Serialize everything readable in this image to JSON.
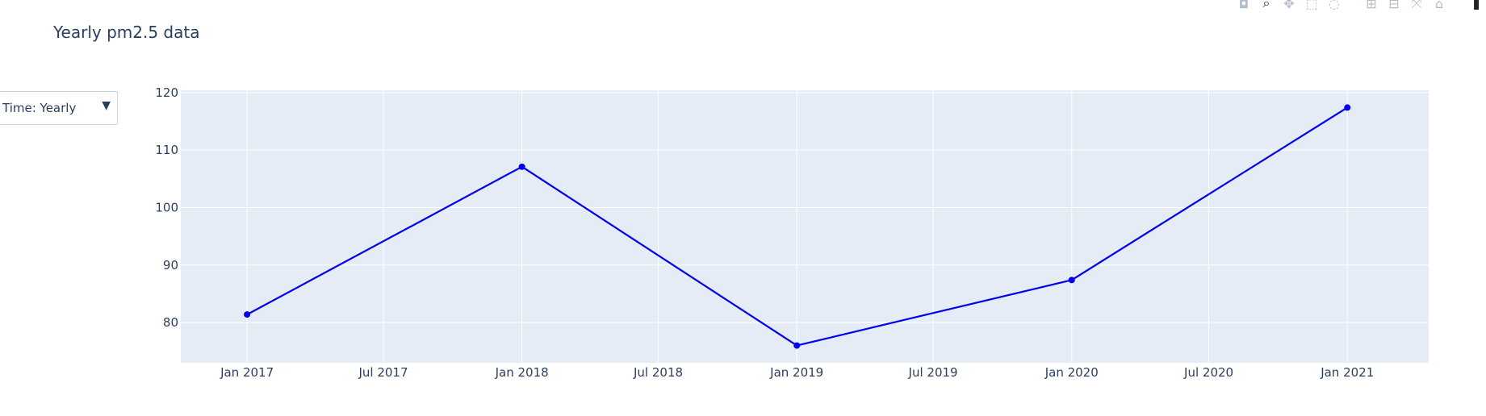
{
  "title": "Yearly pm2.5 data",
  "dropdown": {
    "label": "Time: Yearly",
    "arrow": "▼"
  },
  "modebar": [
    {
      "name": "camera-icon",
      "glyph": "◘"
    },
    {
      "name": "zoom-icon",
      "glyph": "⌕",
      "dark": true
    },
    {
      "name": "pan-icon",
      "glyph": "✥"
    },
    {
      "name": "box-select-icon",
      "glyph": "⬚"
    },
    {
      "name": "lasso-select-icon",
      "glyph": "◌"
    },
    {
      "name": "zoom-in-icon",
      "glyph": "⊞"
    },
    {
      "name": "zoom-out-icon",
      "glyph": "⊟"
    },
    {
      "name": "autoscale-icon",
      "glyph": "⤧"
    },
    {
      "name": "reset-axes-icon",
      "glyph": "⌂"
    },
    {
      "name": "plotly-logo-icon",
      "glyph": "▮",
      "dark": true
    }
  ],
  "chart_data": {
    "type": "line",
    "title": "Yearly pm2.5 data",
    "xlabel": "",
    "ylabel": "",
    "x": [
      "2017-01-01",
      "2018-01-01",
      "2019-01-01",
      "2020-01-01",
      "2021-01-01"
    ],
    "y": [
      81.4,
      107.1,
      76.0,
      87.4,
      117.4
    ],
    "xlim": [
      "2016-10-05",
      "2021-04-19"
    ],
    "ylim": [
      73.0,
      120.4
    ],
    "x_ticks": [
      "2017-01-01",
      "2017-07-01",
      "2018-01-01",
      "2018-07-01",
      "2019-01-01",
      "2019-07-01",
      "2020-01-01",
      "2020-07-01",
      "2021-01-01"
    ],
    "x_tick_labels": [
      "Jan 2017",
      "Jul 2017",
      "Jan 2018",
      "Jul 2018",
      "Jan 2019",
      "Jul 2019",
      "Jan 2020",
      "Jul 2020",
      "Jan 2021"
    ],
    "y_ticks": [
      80,
      90,
      100,
      110,
      120
    ],
    "y_tick_labels": [
      "80",
      "90",
      "100",
      "110",
      "120"
    ],
    "grid": true,
    "colors": {
      "line": "#0000ee",
      "plot_bg": "#e5ecf6",
      "grid": "#ffffff"
    }
  }
}
